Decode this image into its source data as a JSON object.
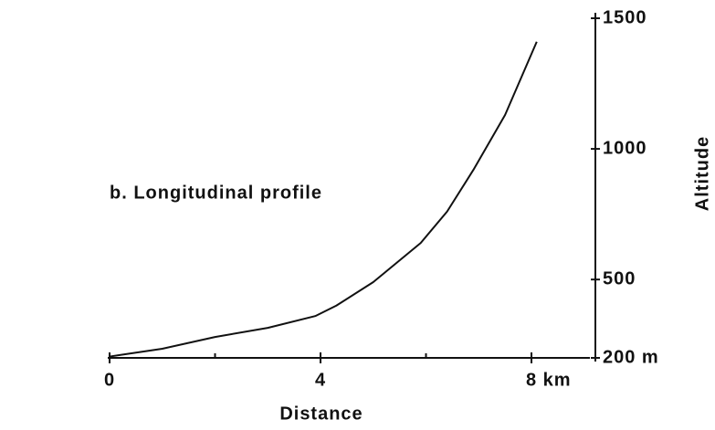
{
  "chart_data": {
    "type": "line",
    "title": "b. Longitudinal profile",
    "x_label": "Distance",
    "y_label": "Altitude",
    "x": [
      0,
      1,
      2,
      3,
      3.9,
      4.3,
      5,
      5.9,
      6.4,
      6.9,
      7.5,
      8.1
    ],
    "series": [
      {
        "name": "Altitude",
        "color": "#111111",
        "axis": "y2",
        "values": [
          205,
          235,
          280,
          315,
          360,
          400,
          490,
          640,
          760,
          920,
          1130,
          1410
        ]
      }
    ],
    "xlim": [
      0,
      9
    ],
    "xticks": [
      0,
      4,
      {
        "value": 8,
        "label": "8 km"
      }
    ],
    "xminorticks": [
      2,
      6
    ],
    "y2lim": [
      200,
      1500
    ],
    "y2ticks": [
      {
        "value": 200,
        "label": "200 m"
      },
      500,
      1000,
      1500
    ]
  }
}
